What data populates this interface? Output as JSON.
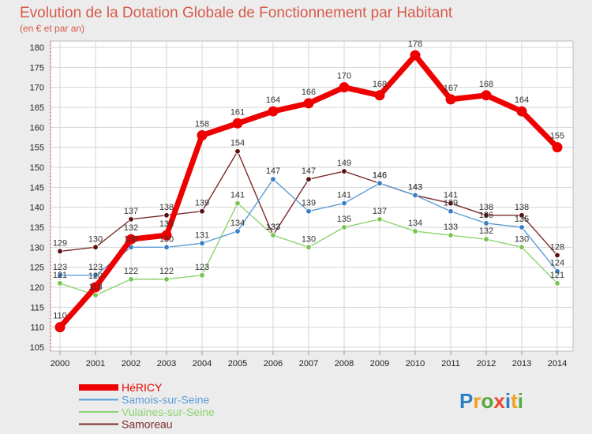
{
  "title": "Evolution de la Dotation Globale de Fonctionnement par Habitant",
  "subtitle": "(en € et par an)",
  "brand": {
    "letters": [
      "P",
      "r",
      "o",
      "x",
      "i",
      "t",
      "i"
    ],
    "colors": [
      "#2a7fc8",
      "#f0a020",
      "#58a840",
      "#e84a30",
      "#2a7fc8",
      "#f0a020",
      "#58a840"
    ]
  },
  "chart_data": {
    "type": "line",
    "title": "Evolution de la Dotation Globale de Fonctionnement par Habitant",
    "ylabel": "(en € et par an)",
    "x": [
      "2000",
      "2001",
      "2002",
      "2003",
      "2004",
      "2005",
      "2006",
      "2007",
      "2008",
      "2009",
      "2010",
      "2011",
      "2012",
      "2013",
      "2014"
    ],
    "ylim": [
      105,
      180
    ],
    "yticks": [
      "105",
      "110",
      "115",
      "120",
      "125",
      "130",
      "135",
      "140",
      "145",
      "150",
      "155",
      "160",
      "165",
      "170",
      "175",
      "180"
    ],
    "grid": true,
    "legend_position": "bottom-left",
    "series": [
      {
        "name": "Samoreau",
        "color": "#7a2a2a",
        "marker": "#5a1010",
        "values": [
          129,
          130,
          137,
          138,
          139,
          154,
          133,
          147,
          149,
          146,
          143,
          141,
          138,
          138,
          128
        ],
        "labels": [
          "129",
          "130",
          "137",
          "138",
          "139",
          "154",
          "133",
          "147",
          "149",
          "146",
          "143",
          "141",
          "138",
          "138",
          "128"
        ]
      },
      {
        "name": "Vulaines-sur-Seine",
        "color": "#8cd46e",
        "marker": "#78c450",
        "values": [
          121,
          118,
          122,
          122,
          123,
          141,
          133,
          130,
          135,
          137,
          134,
          133,
          132,
          130,
          121
        ],
        "labels": [
          "121",
          "118",
          "122",
          "122",
          "123",
          "141",
          "133",
          "130",
          "135",
          "137",
          "134",
          "133",
          "132",
          "130",
          "121"
        ]
      },
      {
        "name": "Samois-sur-Seine",
        "color": "#5d9ed6",
        "marker": "#3a7ec4",
        "values": [
          123,
          123,
          130,
          130,
          131,
          134,
          147,
          139,
          141,
          146,
          143,
          139,
          136,
          135,
          124
        ],
        "labels": [
          "123",
          "123",
          "130",
          "130",
          "131",
          "134",
          "147",
          "139",
          "141",
          "146",
          "143",
          "139",
          "136",
          "135",
          "124"
        ]
      },
      {
        "name": "HéRICY",
        "color": "#ee0000",
        "marker": "#ee0000",
        "values": [
          110,
          120,
          132,
          133,
          158,
          161,
          164,
          166,
          170,
          168,
          178,
          167,
          168,
          164,
          155
        ],
        "labels": [
          "110",
          "120",
          "132",
          "133",
          "158",
          "161",
          "164",
          "166",
          "170",
          "168",
          "178",
          "167",
          "168",
          "164",
          "155"
        ]
      }
    ],
    "legend": [
      {
        "name": "HéRICY",
        "color": "#ee0000"
      },
      {
        "name": "Samois-sur-Seine",
        "color": "#5d9ed6"
      },
      {
        "name": "Vulaines-sur-Seine",
        "color": "#8cd46e"
      },
      {
        "name": "Samoreau",
        "color": "#7a2a2a"
      }
    ]
  }
}
